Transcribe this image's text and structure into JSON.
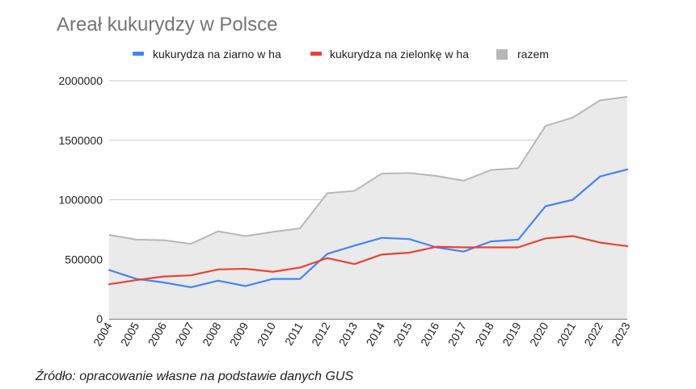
{
  "chart_data": {
    "type": "line",
    "title": "Areał kukurydzy w Polsce",
    "xlabel": "",
    "ylabel": "",
    "x": [
      "2004",
      "2005",
      "2006",
      "2007",
      "2008",
      "2009",
      "2010",
      "2011",
      "2012",
      "2013",
      "2014",
      "2015",
      "2016",
      "2017",
      "2018",
      "2019",
      "2020",
      "2021",
      "2022",
      "2023"
    ],
    "ylim": [
      0,
      2000000
    ],
    "yticks": [
      "0",
      "500000",
      "1000000",
      "1500000",
      "2000000"
    ],
    "ytick_values": [
      0,
      500000,
      1000000,
      1500000,
      2000000
    ],
    "grid": true,
    "legend_position": "top",
    "series": [
      {
        "name": "kukurydza na ziarno w ha",
        "kind": "line",
        "color": "#4285f4",
        "values": [
          410000,
          335000,
          305000,
          265000,
          320000,
          275000,
          335000,
          335000,
          545000,
          615000,
          680000,
          670000,
          600000,
          565000,
          650000,
          665000,
          945000,
          1000000,
          1195000,
          1255000
        ]
      },
      {
        "name": "kukurydza na zielonkę w ha",
        "kind": "line",
        "color": "#ea4335",
        "values": [
          290000,
          325000,
          355000,
          365000,
          415000,
          420000,
          395000,
          430000,
          510000,
          460000,
          540000,
          555000,
          605000,
          600000,
          600000,
          600000,
          675000,
          695000,
          640000,
          610000
        ]
      },
      {
        "name": "razem",
        "kind": "area",
        "color": "#b7b7b7",
        "fill_color": "#eaeaea",
        "values": [
          705000,
          665000,
          660000,
          630000,
          735000,
          695000,
          730000,
          760000,
          1055000,
          1075000,
          1220000,
          1225000,
          1200000,
          1160000,
          1250000,
          1265000,
          1620000,
          1690000,
          1835000,
          1865000
        ]
      }
    ]
  },
  "source_note": "Źródło: opracowanie własne na podstawie danych GUS"
}
